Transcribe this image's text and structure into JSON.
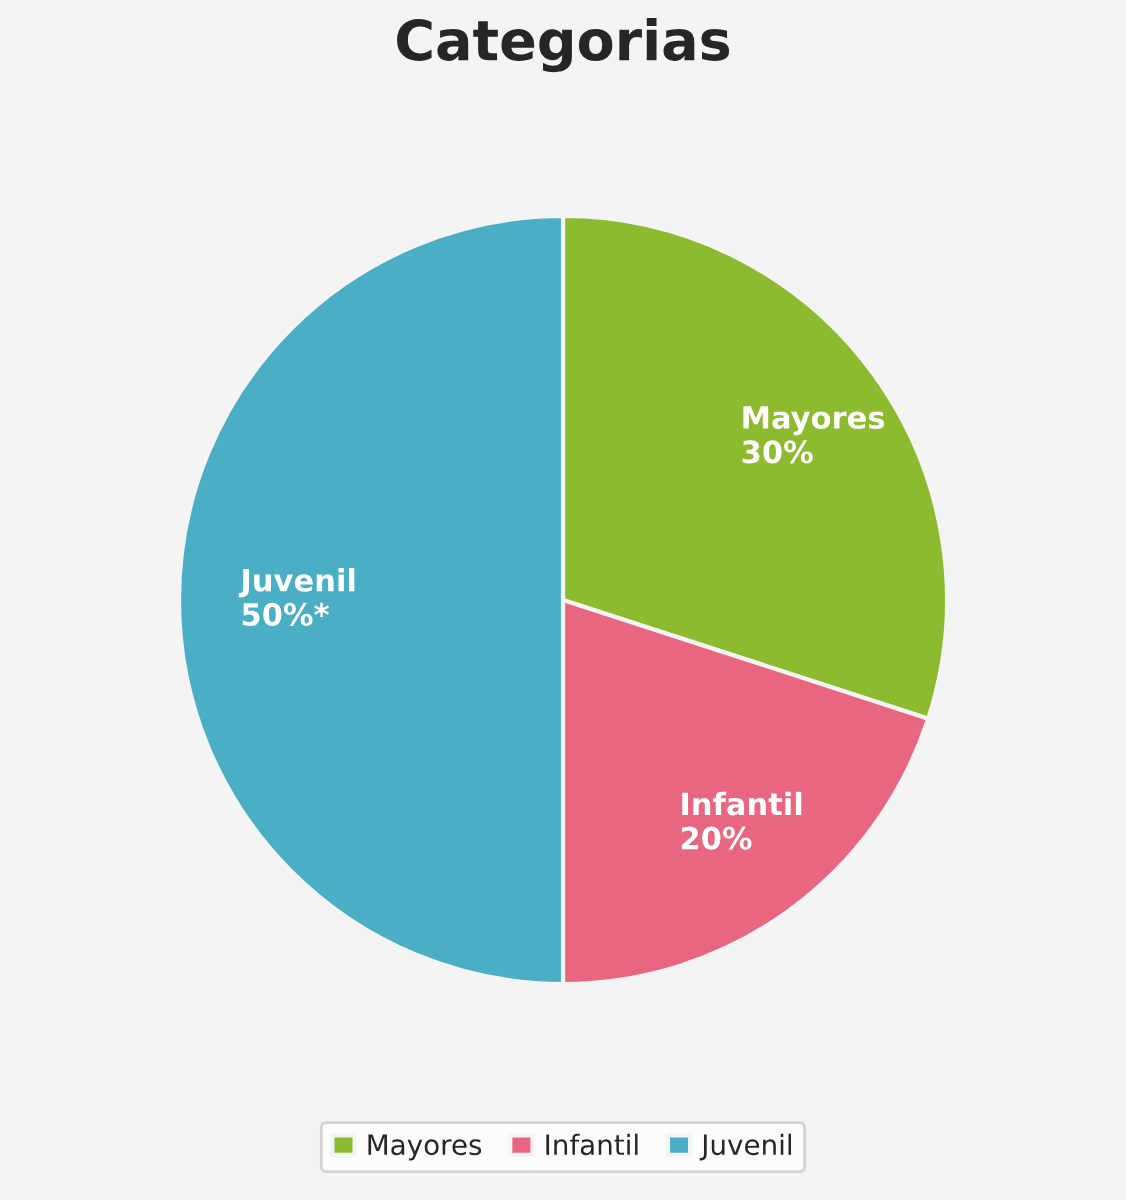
{
  "chart_data": {
    "type": "pie",
    "title": "Categorias",
    "categories": [
      "Mayores",
      "Infantil",
      "Juvenil"
    ],
    "values": [
      30,
      20,
      50
    ],
    "colors": [
      "#8dbb30",
      "#e8667f",
      "#4aaec4"
    ],
    "value_labels": [
      "30%",
      "20%",
      "50%*"
    ],
    "legend": "bottom"
  }
}
